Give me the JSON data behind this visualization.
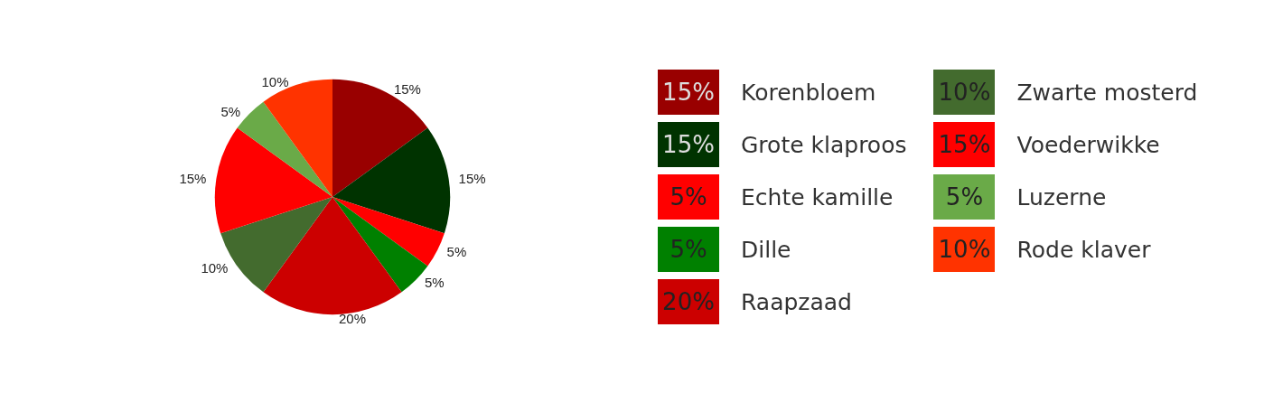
{
  "chart_data": {
    "type": "pie",
    "categories": [
      "Korenbloem",
      "Grote klaproos",
      "Echte kamille",
      "Dille",
      "Raapzaad",
      "Zwarte mosterd",
      "Voederwikke",
      "Luzerne",
      "Rode klaver"
    ],
    "values": [
      15,
      15,
      5,
      5,
      20,
      10,
      15,
      5,
      10
    ],
    "colors": [
      "#990000",
      "#003300",
      "#ff0000",
      "#008000",
      "#cc0000",
      "#436b2e",
      "#ff0000",
      "#6aaa48",
      "#ff3300"
    ],
    "value_labels": [
      "15%",
      "15%",
      "5%",
      "5%",
      "20%",
      "10%",
      "15%",
      "5%",
      "10%"
    ],
    "legend": "right"
  }
}
